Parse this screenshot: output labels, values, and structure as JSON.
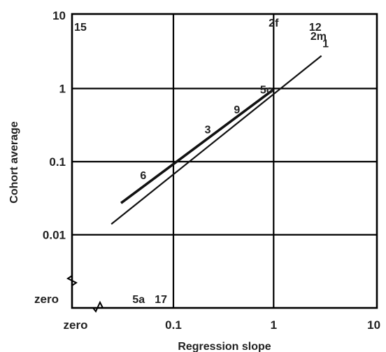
{
  "chart_data": {
    "type": "scatter",
    "title": "",
    "xlabel": "Regression slope",
    "ylabel": "Cohort average",
    "x_scale": "log",
    "y_scale": "log",
    "xlim": [
      0.01,
      10
    ],
    "ylim": [
      0.01,
      10
    ],
    "grid": true,
    "x_ticks": [
      "zero",
      "0.1",
      "1",
      "10"
    ],
    "y_ticks": [
      "zero",
      "0.01",
      "0.1",
      "1",
      "10"
    ],
    "zero_label": "zero",
    "points": [
      {
        "label": "15",
        "x": "zero",
        "y": 7
      },
      {
        "label": "2f",
        "x": 1.0,
        "y": 8
      },
      {
        "label": "12",
        "x": 2.6,
        "y": 7
      },
      {
        "label": "2m",
        "x": 2.8,
        "y": 5.3
      },
      {
        "label": "1",
        "x": 3.3,
        "y": 4.2
      },
      {
        "label": "5o",
        "x": 0.85,
        "y": 0.98
      },
      {
        "label": "9",
        "x": 0.43,
        "y": 0.52
      },
      {
        "label": "3",
        "x": 0.22,
        "y": 0.28
      },
      {
        "label": "6",
        "x": 0.05,
        "y": 0.066
      },
      {
        "label": "5a",
        "x": 0.045,
        "y": "zero"
      },
      {
        "label": "17",
        "x": 0.075,
        "y": "zero"
      }
    ],
    "fit_line": {
      "x": [
        0.024,
        3.0
      ],
      "y": [
        0.014,
        2.8
      ]
    }
  }
}
